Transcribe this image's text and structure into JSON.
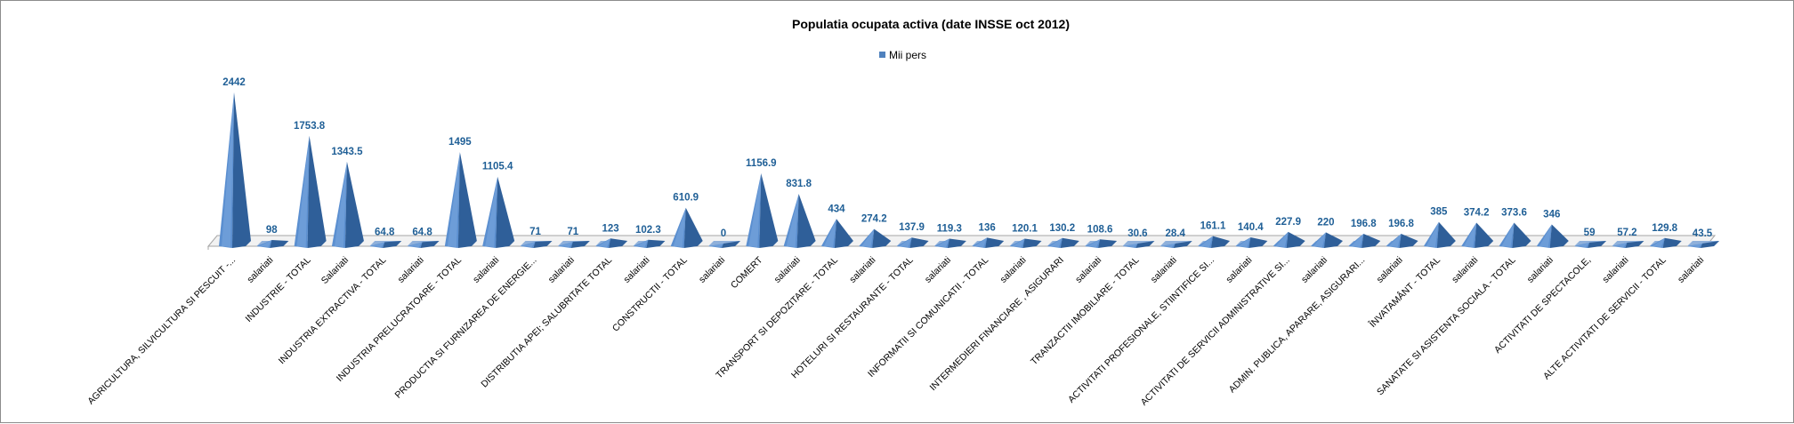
{
  "chart_data": {
    "type": "bar",
    "style": "3d-pyramid",
    "title": "Populatia ocupata activa (date INSSE oct 2012)",
    "legend": {
      "position": "top",
      "entries": [
        "Mii pers"
      ]
    },
    "series": [
      {
        "name": "Mii pers",
        "color": "#4f81bd",
        "values": [
          2442,
          98,
          1753.8,
          1343.5,
          64.8,
          64.8,
          1495,
          1105.4,
          71,
          71,
          123,
          102.3,
          610.9,
          0,
          1156.9,
          831.8,
          434,
          274.2,
          137.9,
          119.3,
          136,
          120.1,
          130.2,
          108.6,
          30.6,
          28.4,
          161.1,
          140.4,
          227.9,
          220,
          196.8,
          196.8,
          385,
          374.2,
          373.6,
          346,
          59,
          57.2,
          129.8,
          43.5
        ]
      }
    ],
    "value_labels": [
      "2442",
      "98",
      "1753.8",
      "1343.5",
      "64.8",
      "64.8",
      "1495",
      "1105.4",
      "71",
      "71",
      "123",
      "102.3",
      "610.9",
      "0",
      "1156.9",
      "831.8",
      "434",
      "274.2",
      "137.9",
      "119.3",
      "136",
      "120.1",
      "130.2",
      "108.6",
      "30.6",
      "28.4",
      "161.1",
      "140.4",
      "227.9",
      "220",
      "196.8",
      "196.8",
      "385",
      "374.2",
      "373.6",
      "346",
      "59",
      "57.2",
      "129.8",
      "43.5"
    ],
    "categories": [
      "AGRICULTURA, SILVICULTURA SI PESCUIT -...",
      "salariati",
      "INDUSTRIE - TOTAL",
      "Salariati",
      "INDUSTRIA EXTRACTIVA - TOTAL",
      "salariati",
      "INDUSTRIA PRELUCRATOARE - TOTAL",
      "salariati",
      "PRODUCTIA SI FURNIZAREA DE ENERGIE...",
      "salariati",
      "DISTRIBUTIA APEI; SALUBRITATE TOTAL",
      "salariati",
      "CONSTRUCTII - TOTAL",
      "salariati",
      "COMERT",
      "salariati",
      "TRANSPORT SI DEPOZITARE - TOTAL",
      "salariati",
      "HOTELURI SI RESTAURANTE - TOTAL",
      "salariati",
      "INFORMATII SI COMUNICATII - TOTAL",
      "salariati",
      "INTERMEDIERI FINANCIARE , ASIGURARI",
      "salariati",
      "TRANZACTII IMOBILIARE - TOTAL",
      "salariati",
      "ACTIVITATI PROFESIONALE, STIINTIFICE SI...",
      "salariati",
      "ACTIVITATI DE SERVICII ADMINISTRATIVE SI...",
      "salariati",
      "ADMIN. PUBLICA, APARARE, ASIGURARI...",
      "salariati",
      "ÎNVATAMÂNT - TOTAL",
      "salariati",
      "SANATATE SI ASISTENTA SOCIALA - TOTAL",
      "salariati",
      "ACTIVITATI DE SPECTACOLE,",
      "salariati",
      "ALTE ACTIVITATI DE SERVICII - TOTAL",
      "salariati"
    ],
    "xlabel": "",
    "ylabel": "",
    "ylim": [
      0,
      2442
    ],
    "grid": false
  }
}
